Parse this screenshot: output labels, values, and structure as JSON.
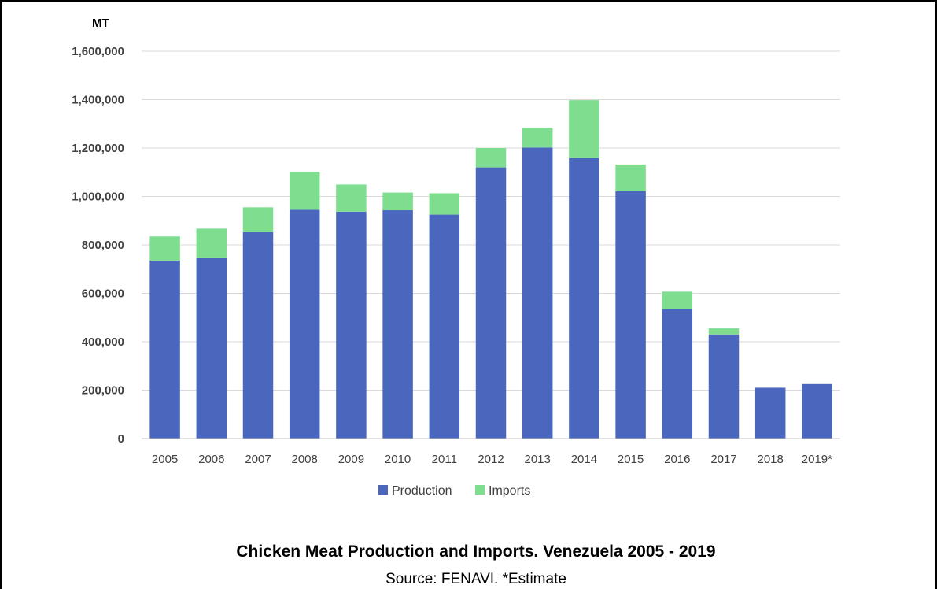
{
  "chart_data": {
    "type": "bar",
    "stacked": true,
    "title": "Chicken Meat Production and Imports. Venezuela 2005 - 2019",
    "subtitle": "Source: FENAVI. *Estimate",
    "ylabel": "MT",
    "xlabel": "",
    "ylim": [
      0,
      1600000
    ],
    "yticks": [
      0,
      200000,
      400000,
      600000,
      800000,
      1000000,
      1200000,
      1400000,
      1600000
    ],
    "ytick_labels": [
      "0",
      "200,000",
      "400,000",
      "600,000",
      "800,000",
      "1,000,000",
      "1,200,000",
      "1,400,000",
      "1,600,000"
    ],
    "grid": true,
    "legend_position": "bottom",
    "categories": [
      "2005",
      "2006",
      "2007",
      "2008",
      "2009",
      "2010",
      "2011",
      "2012",
      "2013",
      "2014",
      "2015",
      "2016",
      "2017",
      "2018",
      "2019*"
    ],
    "series": [
      {
        "name": "Production",
        "color": "#4a66bd",
        "values": [
          735000,
          745000,
          853000,
          945000,
          937000,
          943000,
          925000,
          1120000,
          1202000,
          1158000,
          1022000,
          535000,
          430000,
          210000,
          225000
        ]
      },
      {
        "name": "Imports",
        "color": "#7fdd8f",
        "values": [
          100000,
          122000,
          102000,
          157000,
          112000,
          73000,
          88000,
          80000,
          82000,
          240000,
          110000,
          72000,
          25000,
          0,
          0
        ]
      }
    ]
  }
}
